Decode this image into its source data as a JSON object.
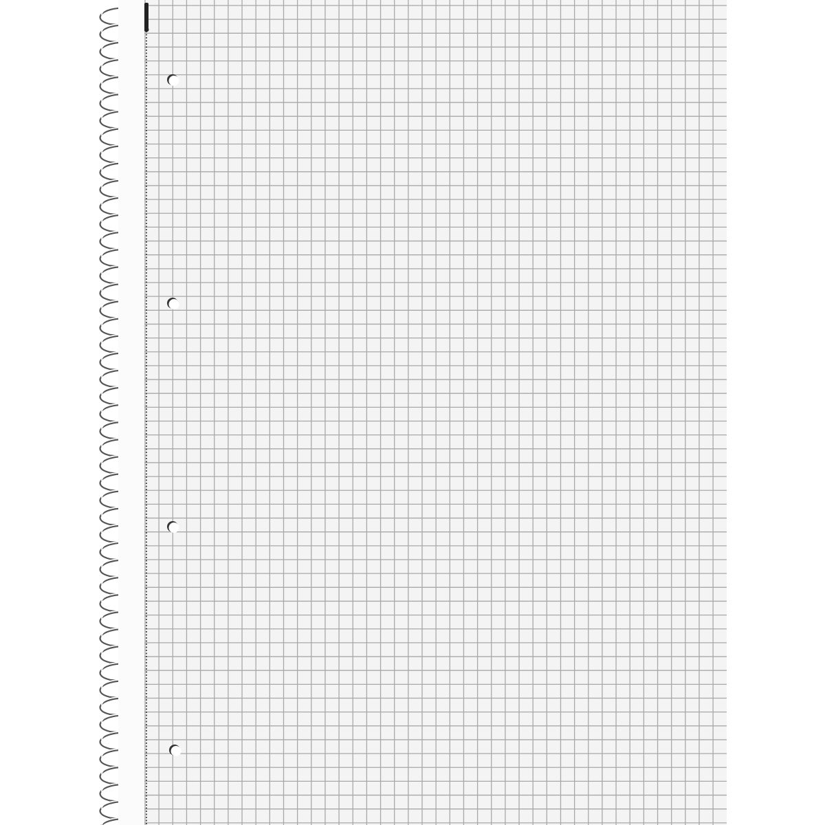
{
  "notebook": {
    "paper_style": "squared grid",
    "binding": "spiral",
    "punch_holes": 4,
    "colors": {
      "background": "#ffffff",
      "paper": "#f4f4f4",
      "grid_line": "#a8a8a8",
      "margin_line": "#222222",
      "spiral": "#3a3a3a"
    }
  }
}
